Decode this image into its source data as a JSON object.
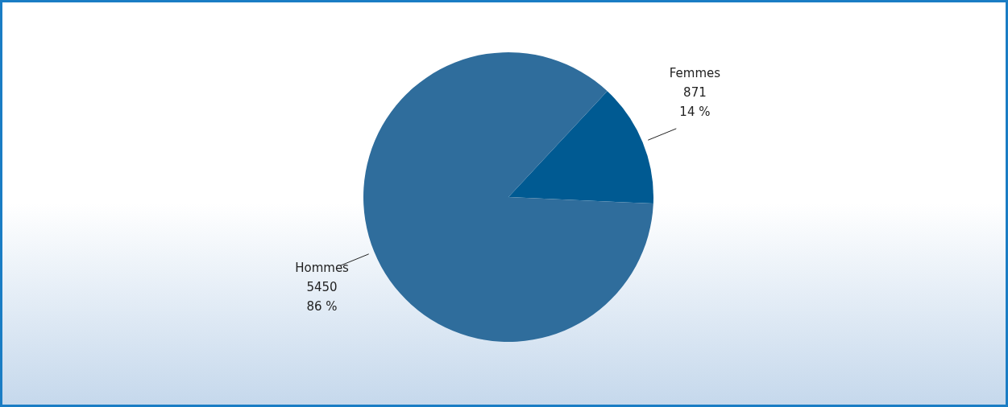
{
  "chart_data": {
    "type": "pie",
    "categories": [
      "Femmes",
      "Hommes"
    ],
    "values": [
      871,
      5450
    ],
    "colors": [
      "#005a92",
      "#2f6d9c"
    ],
    "value_labels": [
      "871\n14 %",
      "5450\n86 %"
    ]
  }
}
